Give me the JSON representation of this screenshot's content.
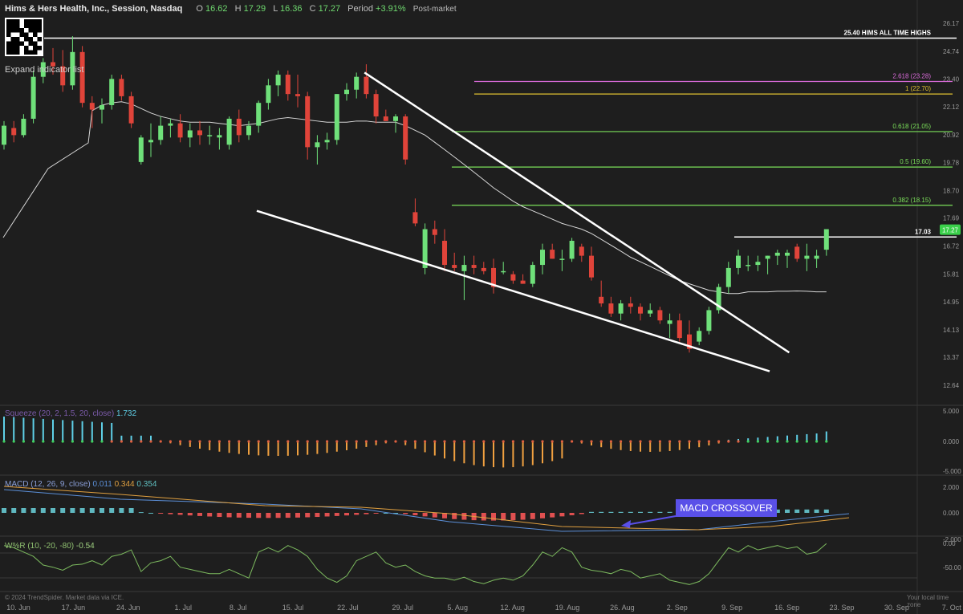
{
  "header": {
    "symbol": "Hims & Hers Health, Inc., Session, Nasdaq",
    "open_label": "O",
    "open": "16.62",
    "high_label": "H",
    "high": "17.29",
    "low_label": "L",
    "low": "16.36",
    "close_label": "C",
    "close": "17.27",
    "period_label": "Period",
    "period": "+3.91%",
    "session": "Post-market",
    "expand_label": "Expand indicator list"
  },
  "panels": {
    "squeeze_label": "Squeeze (20, 2, 1.5, 20, close)",
    "squeeze_value": "1.732",
    "macd_label": "MACD (12, 26, 9, close)",
    "macd_v1": "0.011",
    "macd_v2": "0.344",
    "macd_v3": "0.354",
    "willr_label": "W%R (10, -20, -80)",
    "willr_value": "-0.54"
  },
  "footer": {
    "copyright": "© 2024 TrendSpider. Market data via ICE.",
    "local_time": "Your local time zone"
  },
  "colors": {
    "bg": "#1e1e1e",
    "up": "#6fe07a",
    "down": "#e0443a",
    "line": "#ffffff",
    "fib": "#7be05a",
    "fib_ext1": "#d96bd9",
    "fib_ext2": "#e0c030"
  },
  "chart_data": {
    "type": "candlestick",
    "price_axis_ticks": [
      "26.17",
      "24.74",
      "23.40",
      "22.12",
      "20.92",
      "19.78",
      "18.70",
      "17.69",
      "16.72",
      "15.81",
      "14.95",
      "14.13",
      "13.37",
      "12.64"
    ],
    "date_ticks": [
      "10. Jun",
      "17. Jun",
      "24. Jun",
      "1. Jul",
      "8. Jul",
      "15. Jul",
      "22. Jul",
      "29. Jul",
      "5. Aug",
      "12. Aug",
      "19. Aug",
      "26. Aug",
      "2. Sep",
      "9. Sep",
      "16. Sep",
      "23. Sep",
      "30. Sep",
      "7. Oct"
    ],
    "last_price": "17.27",
    "horizontal_levels": [
      {
        "value": 25.4,
        "label": "25.40",
        "text": "HIMS ALL TIME HIGHS"
      },
      {
        "value": 17.03,
        "label": "17.03",
        "text": ""
      }
    ],
    "fib_levels": [
      {
        "value": 23.28,
        "label": "2.618 (23.28)"
      },
      {
        "value": 22.7,
        "label": "1 (22.70)"
      },
      {
        "value": 21.05,
        "label": "0.618 (21.05)"
      },
      {
        "value": 19.6,
        "label": "0.5 (19.60)"
      },
      {
        "value": 18.15,
        "label": "0.382 (18.15)"
      }
    ],
    "candles": [
      [
        20.5,
        21.5,
        20.3,
        21.3
      ],
      [
        21.2,
        21.5,
        20.6,
        20.9
      ],
      [
        20.9,
        21.8,
        20.8,
        21.6
      ],
      [
        21.6,
        23.8,
        21.4,
        23.5
      ],
      [
        23.5,
        24.4,
        23.2,
        24.2
      ],
      [
        24.2,
        24.9,
        23.6,
        24.0
      ],
      [
        24.0,
        24.8,
        22.8,
        23.1
      ],
      [
        23.1,
        25.5,
        22.9,
        24.7
      ],
      [
        24.7,
        25.0,
        22.1,
        22.3
      ],
      [
        22.3,
        22.6,
        21.2,
        22.0
      ],
      [
        22.0,
        22.5,
        21.4,
        22.2
      ],
      [
        22.2,
        23.6,
        22.0,
        23.4
      ],
      [
        23.4,
        23.6,
        22.4,
        22.6
      ],
      [
        22.6,
        22.8,
        21.2,
        21.4
      ],
      [
        19.8,
        20.9,
        19.7,
        20.8
      ],
      [
        20.6,
        21.4,
        20.0,
        20.7
      ],
      [
        20.7,
        21.7,
        20.5,
        21.3
      ],
      [
        21.3,
        21.6,
        20.8,
        21.4
      ],
      [
        21.4,
        21.8,
        20.6,
        20.8
      ],
      [
        20.8,
        21.4,
        20.4,
        21.1
      ],
      [
        21.1,
        21.5,
        20.5,
        20.9
      ],
      [
        20.9,
        21.3,
        20.5,
        20.9
      ],
      [
        20.8,
        21.2,
        20.3,
        20.9
      ],
      [
        20.5,
        21.7,
        20.3,
        21.6
      ],
      [
        21.6,
        22.0,
        20.6,
        20.9
      ],
      [
        20.9,
        21.5,
        20.7,
        21.3
      ],
      [
        21.3,
        22.4,
        21.0,
        22.3
      ],
      [
        22.3,
        23.4,
        22.0,
        23.1
      ],
      [
        23.1,
        23.8,
        22.6,
        23.6
      ],
      [
        23.6,
        23.8,
        22.4,
        22.7
      ],
      [
        22.7,
        23.6,
        22.1,
        22.6
      ],
      [
        22.6,
        22.8,
        19.9,
        20.4
      ],
      [
        20.4,
        20.9,
        19.7,
        20.6
      ],
      [
        20.6,
        21.0,
        20.3,
        20.7
      ],
      [
        20.7,
        22.7,
        20.5,
        22.7
      ],
      [
        22.7,
        23.2,
        22.4,
        22.9
      ],
      [
        22.9,
        23.7,
        22.5,
        23.5
      ],
      [
        23.5,
        24.1,
        22.5,
        22.7
      ],
      [
        22.7,
        22.9,
        21.4,
        21.7
      ],
      [
        21.7,
        22.0,
        21.5,
        21.5
      ],
      [
        21.5,
        21.8,
        21.0,
        21.7
      ],
      [
        21.7,
        21.8,
        19.7,
        19.9
      ],
      [
        17.9,
        18.4,
        17.4,
        17.5
      ],
      [
        16.0,
        17.5,
        15.8,
        17.3
      ],
      [
        17.3,
        17.6,
        16.8,
        17.1
      ],
      [
        16.9,
        17.3,
        15.9,
        16.1
      ],
      [
        16.1,
        16.5,
        15.9,
        16.0
      ],
      [
        15.9,
        16.4,
        15.0,
        16.1
      ],
      [
        16.1,
        16.4,
        15.8,
        16.0
      ],
      [
        16.0,
        16.2,
        15.8,
        15.9
      ],
      [
        16.0,
        16.3,
        15.2,
        15.4
      ],
      [
        15.9,
        16.2,
        15.8,
        15.9
      ],
      [
        15.8,
        15.9,
        15.5,
        15.6
      ],
      [
        15.6,
        15.8,
        15.5,
        15.5
      ],
      [
        15.5,
        16.2,
        15.4,
        16.1
      ],
      [
        16.1,
        16.8,
        15.8,
        16.6
      ],
      [
        16.6,
        16.8,
        16.3,
        16.3
      ],
      [
        16.3,
        16.6,
        15.9,
        16.3
      ],
      [
        16.3,
        17.0,
        16.2,
        16.9
      ],
      [
        16.7,
        16.8,
        16.2,
        16.4
      ],
      [
        16.4,
        16.7,
        15.6,
        15.7
      ],
      [
        15.1,
        15.6,
        14.8,
        14.9
      ],
      [
        14.9,
        15.1,
        14.5,
        14.6
      ],
      [
        14.6,
        15.0,
        14.4,
        14.9
      ],
      [
        14.9,
        15.1,
        14.6,
        14.8
      ],
      [
        14.8,
        14.9,
        14.4,
        14.6
      ],
      [
        14.6,
        14.9,
        14.5,
        14.7
      ],
      [
        14.7,
        14.8,
        14.3,
        14.4
      ],
      [
        14.3,
        14.6,
        13.9,
        14.4
      ],
      [
        14.4,
        14.6,
        13.8,
        13.9
      ],
      [
        14.0,
        14.4,
        13.5,
        13.6
      ],
      [
        13.8,
        14.2,
        13.7,
        14.1
      ],
      [
        14.1,
        14.8,
        14.0,
        14.7
      ],
      [
        14.7,
        15.5,
        14.6,
        15.4
      ],
      [
        15.4,
        16.2,
        15.2,
        16.0
      ],
      [
        16.0,
        16.6,
        15.8,
        16.4
      ],
      [
        16.1,
        16.4,
        15.9,
        16.1
      ],
      [
        16.1,
        16.4,
        15.9,
        16.2
      ],
      [
        16.3,
        16.4,
        15.8,
        16.4
      ],
      [
        16.4,
        16.6,
        16.1,
        16.5
      ],
      [
        16.4,
        16.6,
        16.0,
        16.5
      ],
      [
        16.7,
        16.8,
        16.2,
        16.3
      ],
      [
        16.3,
        16.8,
        15.9,
        16.4
      ],
      [
        16.3,
        16.6,
        16.0,
        16.4
      ],
      [
        16.6,
        17.3,
        16.4,
        17.3
      ]
    ],
    "sma_20": [
      null,
      null,
      null,
      null,
      null,
      null,
      null,
      null,
      null,
      21.95,
      22.2,
      22.3,
      22.35,
      22.25,
      22.05,
      21.85,
      21.7,
      21.6,
      21.5,
      21.45,
      21.45,
      21.45,
      21.4,
      21.35,
      21.3,
      21.35,
      21.4,
      21.5,
      21.6,
      21.65,
      21.6,
      21.55,
      21.5,
      21.45,
      21.45,
      21.45,
      21.5,
      21.5,
      21.45,
      21.45,
      21.45,
      21.3,
      21.1,
      20.9,
      20.6,
      20.3,
      20.0,
      19.7,
      19.4,
      19.1,
      18.8,
      18.55,
      18.3,
      18.1,
      17.95,
      17.8,
      17.65,
      17.5,
      17.4,
      17.3,
      17.15,
      16.95,
      16.75,
      16.55,
      16.35,
      16.2,
      16.05,
      15.9,
      15.75,
      15.6,
      15.5,
      15.4,
      15.3,
      15.25,
      15.2,
      15.2,
      15.25,
      15.25,
      15.25,
      15.27,
      15.27,
      15.28,
      15.27,
      15.25,
      15.25
    ],
    "trendlines": [
      {
        "from": [
          25,
          17.95
        ],
        "to": [
          70,
          13.0
        ],
        "label": ""
      },
      {
        "from": [
          36,
          23.7
        ],
        "to": [
          72,
          13.5
        ],
        "label": ""
      }
    ],
    "squeeze": {
      "ylim": [
        -5,
        5
      ],
      "ticks": [
        "5.000",
        "0.000",
        "-5.000"
      ],
      "last": "1.732"
    },
    "macd": {
      "ticks": [
        "2.000",
        "0.000",
        "-2.000"
      ],
      "annotation": "MACD CROSSOVER"
    },
    "williams_r": {
      "ticks": [
        "0.00",
        "-50.00"
      ],
      "values": [
        -5,
        -10,
        -20,
        -30,
        -50,
        -55,
        -62,
        -50,
        -48,
        -40,
        -50,
        -30,
        -25,
        -15,
        -65,
        -45,
        -40,
        -30,
        -55,
        -60,
        -65,
        -70,
        -70,
        -60,
        -70,
        -80,
        -20,
        -10,
        -20,
        -5,
        -15,
        -30,
        -60,
        -80,
        -90,
        -75,
        -40,
        -30,
        -20,
        -45,
        -55,
        -50,
        -65,
        -75,
        -80,
        -80,
        -85,
        -78,
        -88,
        -93,
        -85,
        -80,
        -85,
        -75,
        -50,
        -20,
        -30,
        -10,
        -20,
        -55,
        -62,
        -65,
        -70,
        -60,
        -65,
        -80,
        -75,
        -70,
        -85,
        -90,
        -95,
        -88,
        -70,
        -40,
        -10,
        -20,
        -5,
        -15,
        -10,
        -5,
        -12,
        -8,
        -25,
        -20,
        -0.54
      ]
    }
  }
}
